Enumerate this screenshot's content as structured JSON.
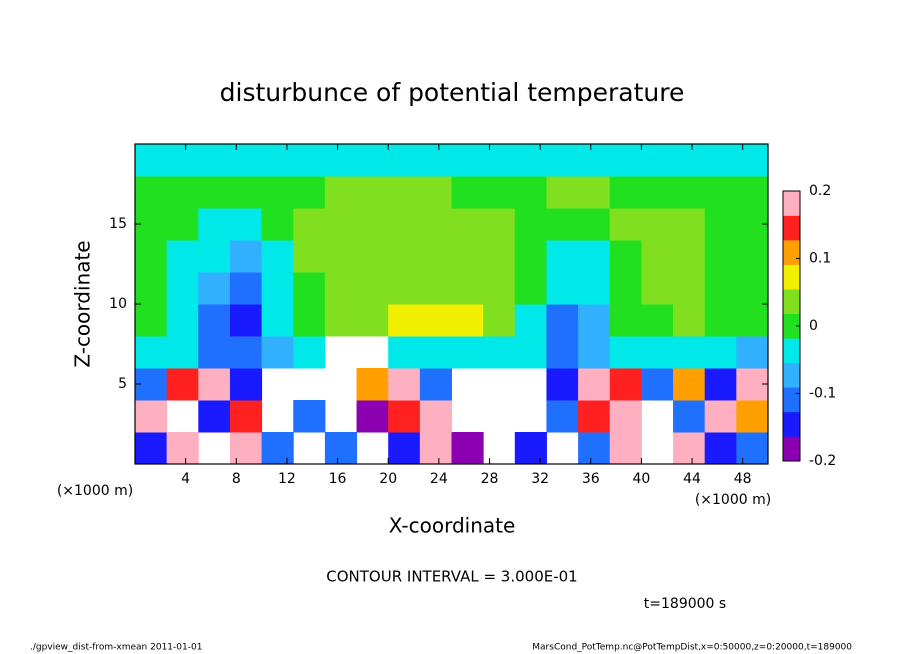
{
  "chart_data": {
    "type": "heatmap",
    "title": "disturbunce of potential temperature",
    "xlabel": "X-coordinate",
    "ylabel": "Z-coordinate",
    "x_unit_labels": [
      "(×1000 m)",
      "(×1000 m)"
    ],
    "contour_note": "CONTOUR INTERVAL = 3.000E-01",
    "time_label": "t=189000 s",
    "footer_left": "./gpview_dist-from-xmean  2011-01-01",
    "footer_right": "MarsCond_PotTemp.nc@PotTempDist,x=0:50000,z=0:20000,t=189000",
    "xlim": [
      0,
      50
    ],
    "ylim": [
      0,
      20
    ],
    "xticks": [
      4,
      8,
      12,
      16,
      20,
      24,
      28,
      32,
      36,
      40,
      44,
      48
    ],
    "yticks": [
      5,
      10,
      15
    ],
    "x": [
      1.25,
      3.75,
      6.25,
      8.75,
      11.25,
      13.75,
      16.25,
      18.75,
      21.25,
      23.75,
      26.25,
      28.75,
      31.25,
      33.75,
      36.25,
      38.75,
      41.25,
      43.75,
      46.25,
      48.75
    ],
    "y": [
      1,
      3,
      5,
      7,
      9,
      11,
      13,
      15,
      17,
      19
    ],
    "z": [
      [
        -0.15,
        0.18,
        null,
        0.2,
        -0.12,
        null,
        -0.1,
        null,
        -0.15,
        0.2,
        -0.2,
        null,
        -0.15,
        null,
        -0.1,
        0.18,
        null,
        0.2,
        -0.15,
        -0.12
      ],
      [
        0.2,
        null,
        -0.15,
        0.15,
        null,
        -0.12,
        null,
        -0.18,
        0.15,
        0.18,
        null,
        null,
        null,
        -0.12,
        0.15,
        0.2,
        null,
        -0.12,
        0.2,
        0.12
      ],
      [
        -0.1,
        0.15,
        0.2,
        -0.15,
        null,
        null,
        null,
        0.12,
        0.2,
        -0.12,
        null,
        null,
        null,
        -0.15,
        0.2,
        0.15,
        -0.1,
        0.12,
        -0.15,
        0.2
      ],
      [
        -0.04,
        -0.05,
        -0.1,
        -0.12,
        -0.06,
        -0.03,
        null,
        null,
        -0.03,
        -0.02,
        -0.02,
        -0.04,
        -0.05,
        -0.1,
        -0.08,
        -0.04,
        -0.03,
        -0.04,
        -0.05,
        -0.06
      ],
      [
        -0.01,
        -0.04,
        -0.12,
        -0.14,
        -0.05,
        0.0,
        0.02,
        0.05,
        0.06,
        0.06,
        0.06,
        0.03,
        -0.03,
        -0.1,
        -0.08,
        -0.01,
        0.01,
        0.02,
        0.0,
        -0.01
      ],
      [
        0.0,
        -0.03,
        -0.08,
        -0.1,
        -0.04,
        0.01,
        0.02,
        0.04,
        0.05,
        0.05,
        0.05,
        0.03,
        -0.01,
        -0.05,
        -0.04,
        0.0,
        0.02,
        0.02,
        0.01,
        0.0
      ],
      [
        0.0,
        -0.02,
        -0.05,
        -0.06,
        -0.02,
        0.02,
        0.03,
        0.04,
        0.04,
        0.05,
        0.04,
        0.03,
        0.0,
        -0.03,
        -0.02,
        0.01,
        0.02,
        0.02,
        0.01,
        0.01
      ],
      [
        0.01,
        0.0,
        -0.03,
        -0.04,
        0.01,
        0.02,
        0.02,
        0.03,
        0.04,
        0.04,
        0.03,
        0.02,
        0.01,
        0.0,
        0.01,
        0.02,
        0.02,
        0.02,
        0.01,
        0.01
      ],
      [
        0.01,
        0.01,
        0.01,
        0.0,
        0.0,
        0.01,
        0.02,
        0.03,
        0.03,
        0.02,
        0.01,
        0.01,
        0.01,
        0.02,
        0.02,
        0.01,
        0.01,
        0.01,
        0.01,
        0.01
      ],
      [
        -0.05,
        -0.05,
        -0.05,
        -0.05,
        -0.05,
        -0.05,
        -0.05,
        -0.05,
        -0.05,
        -0.05,
        -0.05,
        -0.05,
        -0.05,
        -0.05,
        -0.05,
        -0.05,
        -0.05,
        -0.05,
        -0.05,
        -0.05
      ]
    ],
    "clim": [
      -0.2,
      0.2
    ],
    "cticks": [
      -0.2,
      -0.1,
      0,
      0.1,
      0.2
    ],
    "colors": [
      "#8b00b0",
      "#1a1aff",
      "#2070ff",
      "#30b0ff",
      "#00e8e8",
      "#20e020",
      "#80e020",
      "#f0f000",
      "#ffa000",
      "#ff2020",
      "#ffb0c0"
    ]
  }
}
